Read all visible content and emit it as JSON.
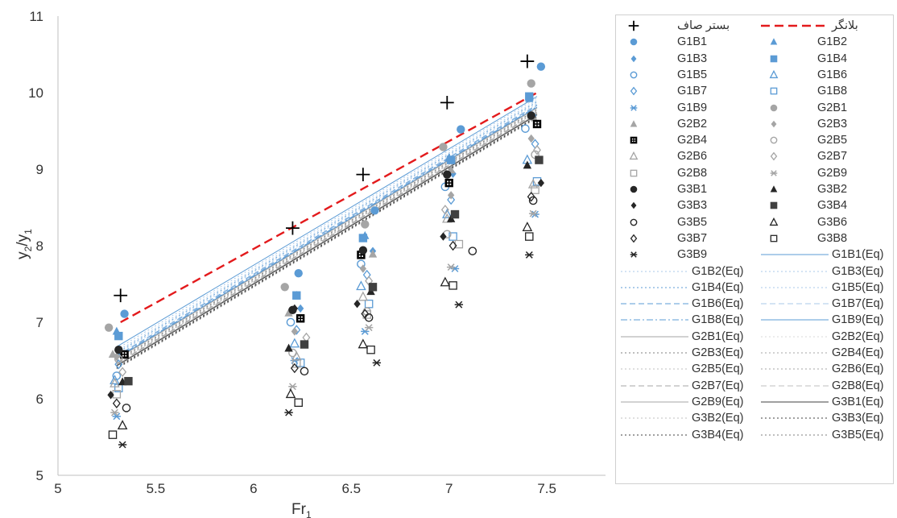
{
  "chart_data": {
    "type": "scatter",
    "xlabel": "Fr",
    "xlabel_sub": "1",
    "ylabel": "y",
    "ylabel_sub1": "2",
    "ylabel_mid": "/y",
    "ylabel_sub2": "1",
    "xlim": [
      5,
      7.8
    ],
    "ylim": [
      5,
      11
    ],
    "x_ticks": [
      "5",
      "5.5",
      "6",
      "6.5",
      "7",
      "7.5"
    ],
    "y_ticks": [
      "5",
      "6",
      "7",
      "8",
      "9",
      "10",
      "11"
    ],
    "grid": false,
    "legend_position": "right",
    "series": [
      {
        "name": "بستر صاف",
        "marker": "plus",
        "color": "#000000",
        "points": [
          [
            5.32,
            7.35
          ],
          [
            6.2,
            8.23
          ],
          [
            6.56,
            8.93
          ],
          [
            6.99,
            9.87
          ],
          [
            7.4,
            10.41
          ]
        ]
      },
      {
        "name": "بلانگر",
        "line": "dashed",
        "color": "#e31a1c",
        "line_points": [
          [
            5.32,
            7.0
          ],
          [
            7.45,
            10.0
          ]
        ]
      },
      {
        "name": "G1B1",
        "marker": "circle",
        "color": "#5b9bd5",
        "points": [
          [
            5.34,
            7.11
          ],
          [
            6.23,
            7.64
          ],
          [
            6.62,
            8.46
          ],
          [
            7.06,
            9.52
          ],
          [
            7.47,
            10.34
          ]
        ]
      },
      {
        "name": "G1B2",
        "marker": "triangle",
        "color": "#5b9bd5",
        "points": [
          [
            5.3,
            6.88
          ],
          [
            6.22,
            7.35
          ],
          [
            6.57,
            8.13
          ],
          [
            7.0,
            9.15
          ],
          [
            7.41,
            9.92
          ]
        ]
      },
      {
        "name": "G1B3",
        "marker": "diamond",
        "color": "#5b9bd5",
        "points": [
          [
            5.32,
            6.59
          ],
          [
            6.24,
            7.18
          ],
          [
            6.61,
            7.93
          ],
          [
            7.02,
            8.94
          ],
          [
            7.43,
            9.7
          ]
        ]
      },
      {
        "name": "G1B4",
        "marker": "square",
        "color": "#5b9bd5",
        "points": [
          [
            5.31,
            6.82
          ],
          [
            6.22,
            7.35
          ],
          [
            6.56,
            8.1
          ],
          [
            7.01,
            9.12
          ],
          [
            7.41,
            9.95
          ]
        ]
      },
      {
        "name": "G1B5",
        "marker": "circle-open",
        "color": "#5b9bd5",
        "points": [
          [
            5.3,
            6.3
          ],
          [
            6.19,
            7.0
          ],
          [
            6.55,
            7.76
          ],
          [
            6.98,
            8.77
          ],
          [
            7.39,
            9.53
          ]
        ]
      },
      {
        "name": "G1B6",
        "marker": "triangle-open",
        "color": "#5b9bd5",
        "points": [
          [
            5.29,
            6.24
          ],
          [
            6.21,
            6.72
          ],
          [
            6.55,
            7.47
          ],
          [
            6.99,
            8.41
          ],
          [
            7.4,
            9.12
          ]
        ]
      },
      {
        "name": "G1B7",
        "marker": "diamond-open",
        "color": "#5b9bd5",
        "points": [
          [
            5.31,
            6.45
          ],
          [
            6.22,
            6.9
          ],
          [
            6.58,
            7.62
          ],
          [
            7.01,
            8.6
          ],
          [
            7.44,
            9.33
          ]
        ]
      },
      {
        "name": "G1B8",
        "marker": "square-open",
        "color": "#5b9bd5",
        "points": [
          [
            5.31,
            6.14
          ],
          [
            6.24,
            6.47
          ],
          [
            6.59,
            7.24
          ],
          [
            7.02,
            8.12
          ],
          [
            7.45,
            8.84
          ]
        ]
      },
      {
        "name": "G1B9",
        "marker": "asterisk",
        "color": "#5b9bd5",
        "points": [
          [
            5.3,
            5.77
          ],
          [
            6.21,
            6.5
          ],
          [
            6.57,
            6.88
          ],
          [
            7.03,
            7.7
          ],
          [
            7.44,
            8.41
          ]
        ]
      },
      {
        "name": "G2B1",
        "marker": "circle",
        "color": "#a5a5a5",
        "points": [
          [
            5.26,
            6.93
          ],
          [
            6.16,
            7.46
          ],
          [
            6.57,
            8.28
          ],
          [
            6.97,
            9.29
          ],
          [
            7.42,
            10.12
          ]
        ]
      },
      {
        "name": "G2B2",
        "marker": "triangle",
        "color": "#a5a5a5",
        "points": [
          [
            5.28,
            6.58
          ],
          [
            6.18,
            7.12
          ],
          [
            6.61,
            7.89
          ],
          [
            7.01,
            8.99
          ],
          [
            7.43,
            9.68
          ]
        ]
      },
      {
        "name": "G2B3",
        "marker": "diamond",
        "color": "#a5a5a5",
        "points": [
          [
            5.3,
            6.55
          ],
          [
            6.21,
            6.88
          ],
          [
            6.56,
            7.7
          ],
          [
            7.01,
            8.66
          ],
          [
            7.42,
            9.4
          ]
        ]
      },
      {
        "name": "G2B4",
        "marker": "square-checker",
        "color": "#000000",
        "points": [
          [
            5.34,
            6.58
          ],
          [
            6.24,
            7.05
          ],
          [
            6.55,
            7.88
          ],
          [
            7.0,
            8.82
          ],
          [
            7.45,
            9.59
          ]
        ]
      },
      {
        "name": "G2B5",
        "marker": "circle-open",
        "color": "#a5a5a5",
        "points": [
          [
            5.31,
            6.52
          ],
          [
            6.2,
            6.6
          ],
          [
            6.58,
            7.14
          ],
          [
            6.99,
            8.15
          ],
          [
            7.44,
            9.19
          ]
        ]
      },
      {
        "name": "G2B6",
        "marker": "triangle-open",
        "color": "#a5a5a5",
        "points": [
          [
            5.29,
            6.2
          ],
          [
            6.22,
            6.55
          ],
          [
            6.56,
            7.33
          ],
          [
            6.99,
            8.35
          ],
          [
            7.43,
            8.8
          ]
        ]
      },
      {
        "name": "G2B7",
        "marker": "diamond-open",
        "color": "#a5a5a5",
        "points": [
          [
            5.33,
            6.35
          ],
          [
            6.27,
            6.8
          ],
          [
            6.59,
            7.54
          ],
          [
            6.98,
            8.47
          ],
          [
            7.45,
            9.25
          ]
        ]
      },
      {
        "name": "G2B8",
        "marker": "square-open",
        "color": "#a5a5a5",
        "points": [
          [
            5.3,
            6.06
          ],
          [
            6.22,
            6.46
          ],
          [
            6.58,
            7.1
          ],
          [
            7.05,
            8.02
          ],
          [
            7.44,
            8.73
          ]
        ]
      },
      {
        "name": "G2B9",
        "marker": "asterisk",
        "color": "#a5a5a5",
        "points": [
          [
            5.29,
            5.82
          ],
          [
            6.2,
            6.16
          ],
          [
            6.59,
            6.93
          ],
          [
            7.01,
            7.72
          ],
          [
            7.43,
            8.42
          ]
        ]
      },
      {
        "name": "G3B1",
        "marker": "circle",
        "color": "#262626",
        "points": [
          [
            5.31,
            6.64
          ],
          [
            6.2,
            7.16
          ],
          [
            6.56,
            7.94
          ],
          [
            6.99,
            8.93
          ],
          [
            7.42,
            9.7
          ]
        ]
      },
      {
        "name": "G3B2",
        "marker": "triangle",
        "color": "#262626",
        "points": [
          [
            5.33,
            6.22
          ],
          [
            6.18,
            6.66
          ],
          [
            6.6,
            7.4
          ],
          [
            7.01,
            8.35
          ],
          [
            7.4,
            9.05
          ]
        ]
      },
      {
        "name": "G3B3",
        "marker": "diamond",
        "color": "#262626",
        "points": [
          [
            5.27,
            6.05
          ],
          [
            6.21,
            7.18
          ],
          [
            6.53,
            7.24
          ],
          [
            6.97,
            8.12
          ],
          [
            7.47,
            8.82
          ]
        ]
      },
      {
        "name": "G3B4",
        "marker": "square",
        "color": "#404040",
        "points": [
          [
            5.36,
            6.23
          ],
          [
            6.26,
            6.71
          ],
          [
            6.61,
            7.46
          ],
          [
            7.03,
            8.41
          ],
          [
            7.46,
            9.12
          ]
        ]
      },
      {
        "name": "G3B5",
        "marker": "circle-open",
        "color": "#262626",
        "points": [
          [
            5.35,
            5.88
          ],
          [
            6.26,
            6.36
          ],
          [
            6.59,
            7.06
          ],
          [
            7.12,
            7.93
          ],
          [
            7.43,
            8.59
          ]
        ]
      },
      {
        "name": "G3B6",
        "marker": "triangle-open",
        "color": "#262626",
        "points": [
          [
            5.33,
            5.65
          ],
          [
            6.19,
            6.06
          ],
          [
            6.56,
            6.71
          ],
          [
            6.98,
            7.52
          ],
          [
            7.4,
            8.24
          ]
        ]
      },
      {
        "name": "G3B7",
        "marker": "diamond-open",
        "color": "#262626",
        "points": [
          [
            5.3,
            5.94
          ],
          [
            6.21,
            6.4
          ],
          [
            6.57,
            7.11
          ],
          [
            7.02,
            8.0
          ],
          [
            7.42,
            8.64
          ]
        ]
      },
      {
        "name": "G3B8",
        "marker": "square-open",
        "color": "#262626",
        "points": [
          [
            5.28,
            5.53
          ],
          [
            6.23,
            5.95
          ],
          [
            6.6,
            6.64
          ],
          [
            7.02,
            7.48
          ],
          [
            7.41,
            8.12
          ]
        ]
      },
      {
        "name": "G3B9",
        "marker": "asterisk",
        "color": "#262626",
        "points": [
          [
            5.33,
            5.4
          ],
          [
            6.18,
            5.82
          ],
          [
            6.63,
            6.47
          ],
          [
            7.05,
            7.23
          ],
          [
            7.41,
            7.88
          ]
        ]
      },
      {
        "name": "G1B1(Eq)",
        "line": "solid",
        "color": "#5b9bd5",
        "line_points": [
          [
            5.3,
            6.68
          ],
          [
            7.45,
            9.95
          ]
        ]
      },
      {
        "name": "G1B2(Eq)",
        "line": "dotted",
        "color": "#a9c8e8",
        "line_points": [
          [
            5.3,
            6.65
          ],
          [
            7.45,
            9.93
          ]
        ]
      },
      {
        "name": "G1B3(Eq)",
        "line": "dotted",
        "color": "#a9c8e8",
        "line_points": [
          [
            5.3,
            6.62
          ],
          [
            7.45,
            9.9
          ]
        ]
      },
      {
        "name": "G1B4(Eq)",
        "line": "dotted",
        "color": "#5b9bd5",
        "line_points": [
          [
            5.3,
            6.6
          ],
          [
            7.45,
            9.88
          ]
        ]
      },
      {
        "name": "G1B5(Eq)",
        "line": "dotted",
        "color": "#a9c8e8",
        "line_points": [
          [
            5.3,
            6.58
          ],
          [
            7.45,
            9.86
          ]
        ]
      },
      {
        "name": "G1B6(Eq)",
        "line": "dashed",
        "color": "#5b9bd5",
        "line_points": [
          [
            5.3,
            6.56
          ],
          [
            7.45,
            9.84
          ]
        ]
      },
      {
        "name": "G1B7(Eq)",
        "line": "dashed",
        "color": "#a9c8e8",
        "line_points": [
          [
            5.3,
            6.55
          ],
          [
            7.45,
            9.83
          ]
        ]
      },
      {
        "name": "G1B8(Eq)",
        "line": "dashdot",
        "color": "#5b9bd5",
        "line_points": [
          [
            5.3,
            6.54
          ],
          [
            7.45,
            9.82
          ]
        ]
      },
      {
        "name": "G1B9(Eq)",
        "line": "solid",
        "color": "#5b9bd5",
        "line_points": [
          [
            5.3,
            6.53
          ],
          [
            7.45,
            9.81
          ]
        ]
      },
      {
        "name": "G2B1(Eq)",
        "line": "solid",
        "color": "#a5a5a5",
        "line_points": [
          [
            5.3,
            6.52
          ],
          [
            7.45,
            9.8
          ]
        ]
      },
      {
        "name": "G2B2(Eq)",
        "line": "dotted",
        "color": "#d9d9d9",
        "line_points": [
          [
            5.3,
            6.51
          ],
          [
            7.45,
            9.79
          ]
        ]
      },
      {
        "name": "G2B3(Eq)",
        "line": "dotted",
        "color": "#7f7f7f",
        "line_points": [
          [
            5.3,
            6.5
          ],
          [
            7.45,
            9.78
          ]
        ]
      },
      {
        "name": "G2B4(Eq)",
        "line": "dotted",
        "color": "#a5a5a5",
        "line_points": [
          [
            5.3,
            6.49
          ],
          [
            7.45,
            9.77
          ]
        ]
      },
      {
        "name": "G2B5(Eq)",
        "line": "dotted",
        "color": "#bfbfbf",
        "line_points": [
          [
            5.3,
            6.48
          ],
          [
            7.45,
            9.76
          ]
        ]
      },
      {
        "name": "G2B6(Eq)",
        "line": "dotted",
        "color": "#a5a5a5",
        "line_points": [
          [
            5.3,
            6.47
          ],
          [
            7.45,
            9.75
          ]
        ]
      },
      {
        "name": "G2B7(Eq)",
        "line": "dashed",
        "color": "#a5a5a5",
        "line_points": [
          [
            5.3,
            6.46
          ],
          [
            7.45,
            9.74
          ]
        ]
      },
      {
        "name": "G2B8(Eq)",
        "line": "dashed",
        "color": "#bfbfbf",
        "line_points": [
          [
            5.3,
            6.45
          ],
          [
            7.45,
            9.73
          ]
        ]
      },
      {
        "name": "G2B9(Eq)",
        "line": "solid",
        "color": "#a5a5a5",
        "line_points": [
          [
            5.3,
            6.44
          ],
          [
            7.45,
            9.72
          ]
        ]
      },
      {
        "name": "G3B1(Eq)",
        "line": "solid",
        "color": "#404040",
        "line_points": [
          [
            5.3,
            6.43
          ],
          [
            7.45,
            9.71
          ]
        ]
      },
      {
        "name": "G3B2(Eq)",
        "line": "dotted",
        "color": "#bfbfbf",
        "line_points": [
          [
            5.3,
            6.42
          ],
          [
            7.45,
            9.7
          ]
        ]
      },
      {
        "name": "G3B3(Eq)",
        "line": "dotted",
        "color": "#404040",
        "line_points": [
          [
            5.3,
            6.41
          ],
          [
            7.45,
            9.69
          ]
        ]
      },
      {
        "name": "G3B4(Eq)",
        "line": "dotted",
        "color": "#404040",
        "line_points": [
          [
            5.3,
            6.4
          ],
          [
            7.45,
            9.68
          ]
        ]
      },
      {
        "name": "G3B5(Eq)",
        "line": "dotted",
        "color": "#7f7f7f",
        "line_points": [
          [
            5.3,
            6.39
          ],
          [
            7.45,
            9.67
          ]
        ]
      }
    ]
  }
}
